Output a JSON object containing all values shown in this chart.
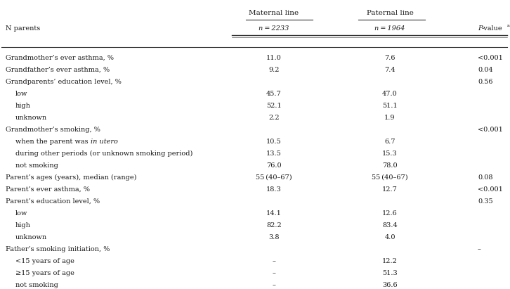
{
  "col_subheaders": [
    "N parents",
    "n = 2233",
    "n = 1964",
    "P-value"
  ],
  "rows": [
    {
      "label": "Grandmother’s ever asthma, %",
      "indent": false,
      "mat": "11.0",
      "pat": "7.6",
      "pval": "<0.001",
      "italic_part": ""
    },
    {
      "label": "Grandfather’s ever asthma, %",
      "indent": false,
      "mat": "9.2",
      "pat": "7.4",
      "pval": "0.04",
      "italic_part": ""
    },
    {
      "label": "Grandparents’ education level, %",
      "indent": false,
      "mat": "",
      "pat": "",
      "pval": "0.56",
      "italic_part": ""
    },
    {
      "label": "low",
      "indent": true,
      "mat": "45.7",
      "pat": "47.0",
      "pval": "",
      "italic_part": ""
    },
    {
      "label": "high",
      "indent": true,
      "mat": "52.1",
      "pat": "51.1",
      "pval": "",
      "italic_part": ""
    },
    {
      "label": "unknown",
      "indent": true,
      "mat": "2.2",
      "pat": "1.9",
      "pval": "",
      "italic_part": ""
    },
    {
      "label": "Grandmother’s smoking, %",
      "indent": false,
      "mat": "",
      "pat": "",
      "pval": "<0.001",
      "italic_part": ""
    },
    {
      "label": "when the parent was |in utero|",
      "indent": true,
      "mat": "10.5",
      "pat": "6.7",
      "pval": "",
      "italic_part": "in utero"
    },
    {
      "label": "during other periods (or unknown smoking period)",
      "indent": true,
      "mat": "13.5",
      "pat": "15.3",
      "pval": "",
      "italic_part": ""
    },
    {
      "label": "not smoking",
      "indent": true,
      "mat": "76.0",
      "pat": "78.0",
      "pval": "",
      "italic_part": ""
    },
    {
      "label": "Parent’s ages (years), median (range)",
      "indent": false,
      "mat": "55 (40–67)",
      "pat": "55 (40–67)",
      "pval": "0.08",
      "italic_part": ""
    },
    {
      "label": "Parent’s ever asthma, %",
      "indent": false,
      "mat": "18.3",
      "pat": "12.7",
      "pval": "<0.001",
      "italic_part": ""
    },
    {
      "label": "Parent’s education level, %",
      "indent": false,
      "mat": "",
      "pat": "",
      "pval": "0.35",
      "italic_part": ""
    },
    {
      "label": "low",
      "indent": true,
      "mat": "14.1",
      "pat": "12.6",
      "pval": "",
      "italic_part": ""
    },
    {
      "label": "high",
      "indent": true,
      "mat": "82.2",
      "pat": "83.4",
      "pval": "",
      "italic_part": ""
    },
    {
      "label": "unknown",
      "indent": true,
      "mat": "3.8",
      "pat": "4.0",
      "pval": "",
      "italic_part": ""
    },
    {
      "label": "Father’s smoking initiation, %",
      "indent": false,
      "mat": "",
      "pat": "",
      "pval": "–",
      "italic_part": ""
    },
    {
      "label": "<15 years of age",
      "indent": true,
      "mat": "–",
      "pat": "12.2",
      "pval": "",
      "italic_part": ""
    },
    {
      "label": "≥15 years of age",
      "indent": true,
      "mat": "–",
      "pat": "51.3",
      "pval": "",
      "italic_part": ""
    },
    {
      "label": "not smoking",
      "indent": true,
      "mat": "–",
      "pat": "36.6",
      "pval": "",
      "italic_part": ""
    }
  ],
  "bg_color": "#ffffff",
  "text_color": "#1a1a1a",
  "font_size": 7.0,
  "header_font_size": 7.5
}
